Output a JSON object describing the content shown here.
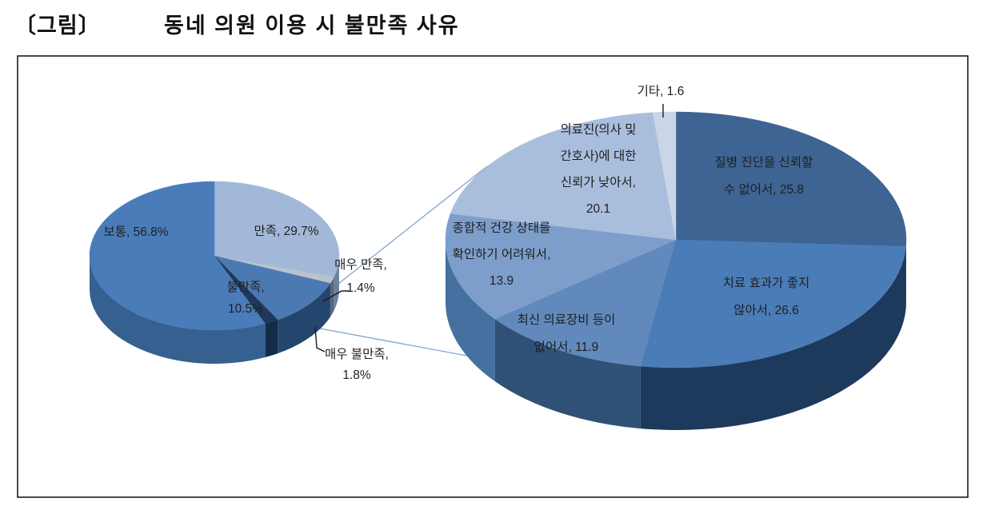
{
  "title": {
    "prefix": "〔그림〕",
    "text": "동네 의원 이용 시 불만족 사유"
  },
  "colors": {
    "frame_border": "#1a1a1a",
    "background": "#ffffff",
    "series_line": "#7fa5cd",
    "leader_line": "#1a1a1a",
    "label_text": "#1f1f1f"
  },
  "chart_data": [
    {
      "type": "pie",
      "name": "satisfaction-pie",
      "description": "left small 3D pie - overall satisfaction with neighborhood clinics",
      "unit": "%",
      "start_angle_deg": 0,
      "slices": [
        {
          "label": "만족",
          "value": 29.7,
          "color": "#a2b8d8",
          "side": "#6c82a3"
        },
        {
          "label": "매우 만족",
          "value": 1.4,
          "color": "#b9c2cf",
          "side": "#5a6678"
        },
        {
          "label": "불만족",
          "value": 10.5,
          "color": "#4b7ab2",
          "side": "#24466e"
        },
        {
          "label": "매우 불만족",
          "value": 1.8,
          "color": "#20395a",
          "side": "#142c47"
        },
        {
          "label": "보통",
          "value": 56.8,
          "color": "#4a7cba",
          "side": "#35608f"
        }
      ]
    },
    {
      "type": "pie",
      "name": "dissatisfaction-reasons-pie",
      "description": "right large 3D pie - reasons for dissatisfaction",
      "unit": "",
      "start_angle_deg": 0,
      "slices": [
        {
          "label": "질병 진단을 신뢰할 수 없어서",
          "value": 25.8,
          "color": "#3d6493",
          "side": "#16314e"
        },
        {
          "label": "치료 효과가 좋지 않아서",
          "value": 26.6,
          "color": "#4a7cb8",
          "side": "#1d3a5d"
        },
        {
          "label": "최신 의료장비 등이 없어서",
          "value": 11.9,
          "color": "#6189bc",
          "side": "#2f5175"
        },
        {
          "label": "종합적 건강 상태를 확인하기 어려워서",
          "value": 13.9,
          "color": "#7d9ecb",
          "side": "#45709f"
        },
        {
          "label": "의료진(의사 및 간호사)에 대한 신뢰가 낮아서",
          "value": 20.1,
          "color": "#a9bedd",
          "side": "#7289ab"
        },
        {
          "label": "기타",
          "value": 1.6,
          "color": "#cbd5e8",
          "side": "#8f9db8"
        }
      ]
    }
  ],
  "labels": [
    {
      "id": "botong",
      "lines": [
        "보통, 56.8%"
      ]
    },
    {
      "id": "manjok",
      "lines": [
        "만족, 29.7%"
      ]
    },
    {
      "id": "bulmanjok",
      "lines": [
        "불만족,",
        "10.5%"
      ]
    },
    {
      "id": "maeu-manjok",
      "lines": [
        "매우 만족,",
        "1.4%"
      ]
    },
    {
      "id": "maeu-bulmanjok",
      "lines": [
        "매우 불만족,",
        "1.8%"
      ]
    },
    {
      "id": "gita",
      "lines": [
        "기타,  1.6"
      ]
    },
    {
      "id": "uiryojin",
      "lines": [
        "의료진(의사 및",
        "간호사)에 대한",
        "신뢰가 낮아서,",
        "20.1"
      ]
    },
    {
      "id": "jilbyeong",
      "lines": [
        "질병 진단을 신뢰할",
        "수 없어서,  25.8"
      ]
    },
    {
      "id": "chiryo",
      "lines": [
        "치료 효과가 좋지",
        "않아서,  26.6"
      ]
    },
    {
      "id": "jonghap",
      "lines": [
        "종합적 건강 상태를",
        "확인하기 어려워서,",
        "13.9"
      ]
    },
    {
      "id": "choesin",
      "lines": [
        "최신 의료장비 등이",
        "없어서,  11.9"
      ]
    }
  ]
}
